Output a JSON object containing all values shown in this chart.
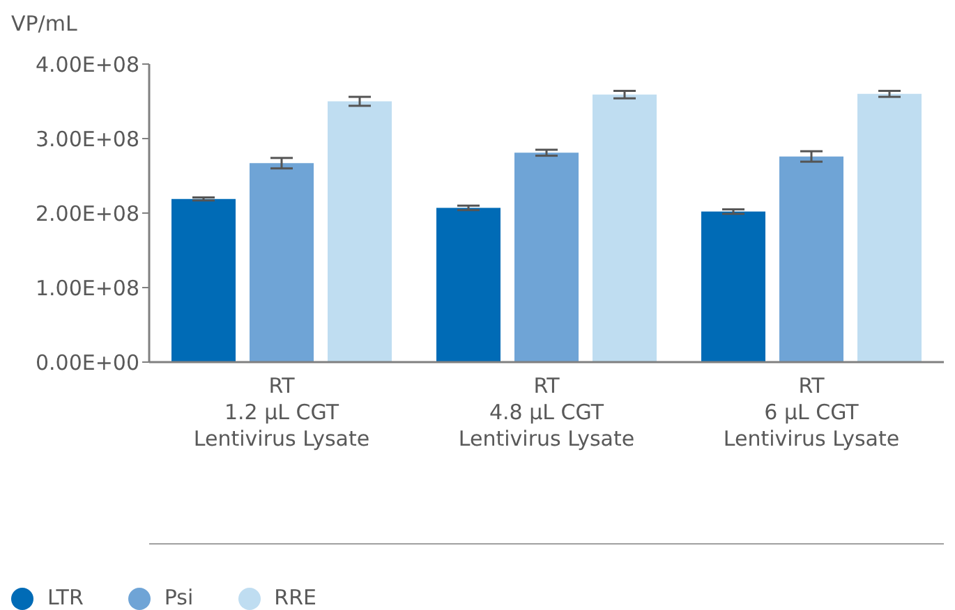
{
  "chart_data": {
    "type": "bar",
    "ylabel": "VP/mL",
    "categories": [
      "RT\n1.2 µL CGT\nLentivirus Lysate",
      "RT\n4.8 µL CGT\nLentivirus Lysate",
      "RT\n6 µL CGT\nLentivirus Lysate"
    ],
    "series": [
      {
        "name": "LTR",
        "color": "#006bb6",
        "values": [
          219000000,
          207000000,
          202000000
        ],
        "errors": [
          2000000,
          3000000,
          3000000
        ]
      },
      {
        "name": "Psi",
        "color": "#6fa4d6",
        "values": [
          267000000,
          281000000,
          276000000
        ],
        "errors": [
          7000000,
          4000000,
          7000000
        ]
      },
      {
        "name": "RRE",
        "color": "#bfddf1",
        "values": [
          350000000,
          359000000,
          360000000
        ],
        "errors": [
          6000000,
          5000000,
          4000000
        ]
      }
    ],
    "ylim": [
      0,
      400000000
    ],
    "yticks": [
      {
        "value": 0,
        "label": "0.00E+00"
      },
      {
        "value": 100000000,
        "label": "1.00E+08"
      },
      {
        "value": 200000000,
        "label": "2.00E+08"
      },
      {
        "value": 300000000,
        "label": "3.00E+08"
      },
      {
        "value": 400000000,
        "label": "4.00E+08"
      }
    ],
    "legend": "bottom left"
  }
}
